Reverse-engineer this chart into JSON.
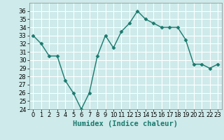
{
  "x": [
    0,
    1,
    2,
    3,
    4,
    5,
    6,
    7,
    8,
    9,
    10,
    11,
    12,
    13,
    14,
    15,
    16,
    17,
    18,
    19,
    20,
    21,
    22,
    23
  ],
  "y": [
    33,
    32,
    30.5,
    30.5,
    27.5,
    26,
    24,
    26,
    30.5,
    33,
    31.5,
    33.5,
    34.5,
    36,
    35,
    34.5,
    34,
    34,
    34,
    32.5,
    29.5,
    29.5,
    29,
    29.5
  ],
  "xlabel": "Humidex (Indice chaleur)",
  "xlim": [
    -0.5,
    23.5
  ],
  "ylim": [
    24,
    37
  ],
  "yticks": [
    24,
    25,
    26,
    27,
    28,
    29,
    30,
    31,
    32,
    33,
    34,
    35,
    36
  ],
  "xticks": [
    0,
    1,
    2,
    3,
    4,
    5,
    6,
    7,
    8,
    9,
    10,
    11,
    12,
    13,
    14,
    15,
    16,
    17,
    18,
    19,
    20,
    21,
    22,
    23
  ],
  "line_color": "#1a7a6e",
  "marker": "D",
  "marker_size": 2.5,
  "bg_color": "#ceeaea",
  "grid_color": "#ffffff",
  "line_width": 1.0,
  "tick_fontsize": 6.0,
  "xlabel_fontsize": 7.5
}
